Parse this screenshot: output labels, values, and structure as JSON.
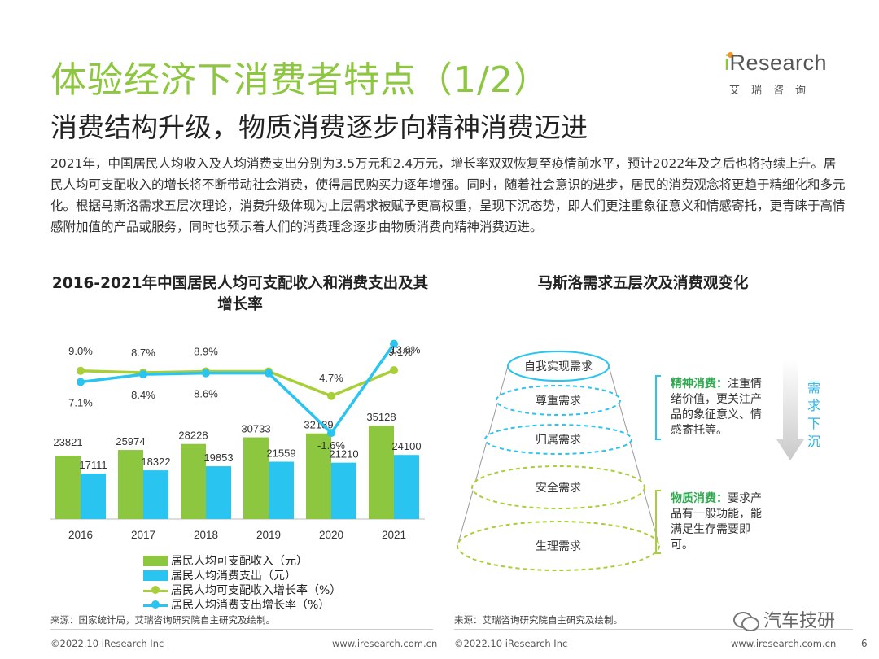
{
  "header": {
    "title": "体验经济下消费者特点（1/2）",
    "subtitle": "消费结构升级，物质消费逐步向精神消费迈进"
  },
  "logo": {
    "brand": "Research",
    "brand_initial": "i",
    "cn": "艾瑞咨询"
  },
  "paragraph": "2021年，中国居民人均收入及人均消费支出分别为3.5万元和2.4万元，增长率双双恢复至疫情前水平，预计2022年及之后也将持续上升。居民人均可支配收入的增长将不断带动社会消费，使得居民购买力逐年增强。同时，随着社会意识的进步，居民的消费观念将更趋于精细化和多元化。根据马斯洛需求五层次理论，消费升级体现为上层需求被赋予更高权重，呈现下沉态势，即人们更注重象征意义和情感寄托，更青睐于高情感附加值的产品或服务，同时也预示着人们的消费理念逐步由物质消费向精神消费迈进。",
  "left_chart_title": "2016-2021年中国居民人均可支配收入和消费支出及其增长率",
  "right_chart_title": "马斯洛需求五层次及消费观变化",
  "chart_data": [
    {
      "type": "bar",
      "categories": [
        "2016",
        "2017",
        "2018",
        "2019",
        "2020",
        "2021"
      ],
      "series": [
        {
          "name": "居民人均可支配收入（元）",
          "values": [
            23821,
            25974,
            28228,
            30733,
            32189,
            35128
          ],
          "color": "#8dc63f"
        },
        {
          "name": "居民人均消费支出（元）",
          "values": [
            17111,
            18322,
            19853,
            21559,
            21210,
            24100
          ],
          "color": "#29c4f0"
        }
      ],
      "line_series": [
        {
          "name": "居民人均可支配收入增长率（%）",
          "values": [
            9.0,
            8.7,
            8.9,
            8.9,
            4.7,
            9.1
          ],
          "labels": [
            "9.0%",
            "8.7%",
            "8.9%",
            "",
            "4.7%",
            "9.1%"
          ],
          "color": "#a8cf38"
        },
        {
          "name": "居民人均消费支出增长率（%）",
          "values": [
            7.1,
            8.4,
            8.6,
            8.6,
            -1.6,
            13.6
          ],
          "labels": [
            "7.1%",
            "8.4%",
            "8.6%",
            "",
            "-1.6%",
            "13.6%"
          ],
          "color": "#29c4f0"
        }
      ]
    }
  ],
  "pyramid": {
    "levels": [
      "自我实现需求",
      "尊重需求",
      "归属需求",
      "安全需求",
      "生理需求"
    ],
    "upper_color": "#29c4f0",
    "lower_color": "#a8cf38"
  },
  "notes": {
    "spiritual_label": "精神消费：",
    "spiritual_text": "注重情绪价值，更关注产品的象征意义、情感寄托等。",
    "material_label": "物质消费：",
    "material_text": "要求产品有一般功能，能满足生存需要即可。",
    "arrow_text": "需求下沉"
  },
  "sources": {
    "left": "来源：国家统计局，艾瑞咨询研究院自主研究及绘制。",
    "right": "来源：艾瑞咨询研究院自主研究及绘制。"
  },
  "footer": {
    "left_copy": "©2022.10 iResearch Inc",
    "left_url": "www.iresearch.com.cn",
    "right_copy": "©2022.10 iResearch Inc",
    "right_url": "www.iresearch.com.cn",
    "watermark": "汽车技研",
    "page": "6"
  }
}
